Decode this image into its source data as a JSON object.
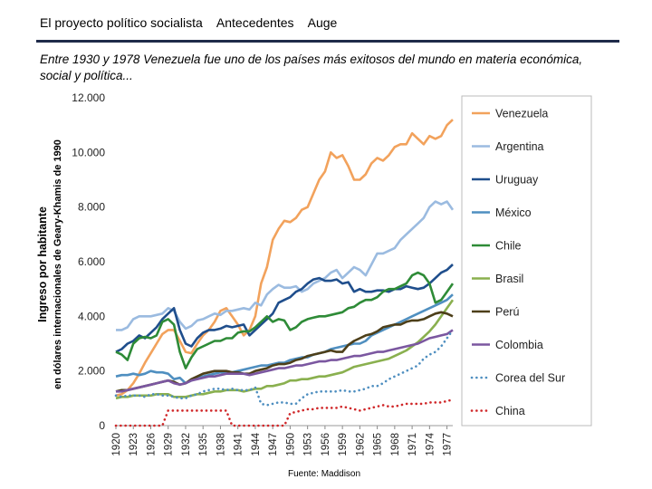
{
  "header": {
    "nav_items": [
      "El proyecto político socialista",
      "Antecedentes",
      "Auge"
    ],
    "intro": "Entre 1930 y 1978 Venezuela fue uno de los países más exitosos del mundo en materia económica, social y política..."
  },
  "footer": {
    "source": "Fuente: Maddison"
  },
  "colors": {
    "rule": "#1f2b4a"
  },
  "chart_data": {
    "type": "line",
    "title": "",
    "ylabel_lines": [
      "Ingreso por habitante",
      "en dólares internacionales de Geary-Khamis de 1990"
    ],
    "ylim": [
      0,
      12000
    ],
    "xlim": [
      1920,
      1978
    ],
    "y_ticks": [
      0,
      2000,
      4000,
      6000,
      8000,
      10000,
      12000
    ],
    "y_tick_labels": [
      "0",
      "2.000",
      "4.000",
      "6.000",
      "8.000",
      "10.000",
      "12.000"
    ],
    "x_ticks": [
      1920,
      1923,
      1926,
      1929,
      1932,
      1935,
      1938,
      1941,
      1944,
      1947,
      1950,
      1953,
      1956,
      1959,
      1962,
      1965,
      1968,
      1971,
      1974,
      1977
    ],
    "x_tick_labels": [
      "1920",
      "1923",
      "1926",
      "1929",
      "1932",
      "1935",
      "1938",
      "1941",
      "1944",
      "1947",
      "1950",
      "1953",
      "1956",
      "1959",
      "1962",
      "1965",
      "1968",
      "1971",
      "1974",
      "1977"
    ],
    "x": [
      1920,
      1921,
      1922,
      1923,
      1924,
      1925,
      1926,
      1927,
      1928,
      1929,
      1930,
      1931,
      1932,
      1933,
      1934,
      1935,
      1936,
      1937,
      1938,
      1939,
      1940,
      1941,
      1942,
      1943,
      1944,
      1945,
      1946,
      1947,
      1948,
      1949,
      1950,
      1951,
      1952,
      1953,
      1954,
      1955,
      1956,
      1957,
      1958,
      1959,
      1960,
      1961,
      1962,
      1963,
      1964,
      1965,
      1966,
      1967,
      1968,
      1969,
      1970,
      1971,
      1972,
      1973,
      1974,
      1975,
      1976,
      1977,
      1978
    ],
    "series": [
      {
        "name": "Venezuela",
        "color": "#f2a25c",
        "dash": "solid",
        "values": [
          1100,
          1150,
          1300,
          1550,
          1900,
          2300,
          2650,
          3000,
          3350,
          3500,
          3500,
          3100,
          2700,
          2650,
          3000,
          3300,
          3500,
          3800,
          4200,
          4300,
          4000,
          3700,
          3300,
          3500,
          4000,
          5200,
          5800,
          6800,
          7200,
          7500,
          7450,
          7600,
          7900,
          8000,
          8500,
          9000,
          9300,
          10000,
          9800,
          9900,
          9500,
          9000,
          9000,
          9200,
          9600,
          9800,
          9700,
          9900,
          10200,
          10300,
          10300,
          10700,
          10500,
          10300,
          10600,
          10500,
          10600,
          11000,
          11200
        ]
      },
      {
        "name": "Argentina",
        "color": "#9bbbe0",
        "dash": "solid",
        "values": [
          3500,
          3500,
          3600,
          3900,
          4000,
          4000,
          4000,
          4050,
          4100,
          4300,
          4200,
          3800,
          3550,
          3650,
          3850,
          3900,
          4000,
          4100,
          4050,
          4200,
          4200,
          4250,
          4300,
          4250,
          4500,
          4400,
          4800,
          5000,
          5150,
          5050,
          5050,
          5100,
          4900,
          5000,
          5200,
          5300,
          5400,
          5600,
          5700,
          5400,
          5600,
          5800,
          5700,
          5500,
          5900,
          6300,
          6300,
          6400,
          6500,
          6800,
          7000,
          7200,
          7400,
          7600,
          8000,
          8200,
          8100,
          8200,
          7900
        ]
      },
      {
        "name": "Uruguay",
        "color": "#1f4e8c",
        "dash": "solid",
        "values": [
          2700,
          2800,
          3000,
          3100,
          3300,
          3200,
          3400,
          3600,
          3900,
          4100,
          4300,
          3500,
          3000,
          2900,
          3200,
          3400,
          3500,
          3500,
          3550,
          3650,
          3600,
          3650,
          3700,
          3300,
          3500,
          3700,
          3900,
          4100,
          4500,
          4600,
          4700,
          4900,
          5000,
          5200,
          5350,
          5400,
          5300,
          5300,
          5350,
          5200,
          5250,
          4900,
          5000,
          4900,
          4900,
          4950,
          4950,
          4900,
          5000,
          5000,
          5100,
          5050,
          5000,
          5050,
          5200,
          5400,
          5600,
          5700,
          5900
        ]
      },
      {
        "name": "México",
        "color": "#4f8fc0",
        "dash": "solid",
        "values": [
          1800,
          1850,
          1850,
          1900,
          1850,
          1900,
          2000,
          1950,
          1950,
          1900,
          1700,
          1750,
          1550,
          1650,
          1750,
          1800,
          1850,
          1900,
          1950,
          1950,
          1950,
          2000,
          2050,
          2100,
          2150,
          2200,
          2200,
          2250,
          2300,
          2300,
          2400,
          2450,
          2500,
          2500,
          2600,
          2650,
          2700,
          2800,
          2850,
          2900,
          2950,
          3000,
          3000,
          3100,
          3300,
          3400,
          3500,
          3600,
          3700,
          3800,
          3900,
          4000,
          4100,
          4200,
          4300,
          4400,
          4500,
          4600,
          4800
        ]
      },
      {
        "name": "Chile",
        "color": "#2e8b37",
        "dash": "solid",
        "values": [
          2700,
          2600,
          2400,
          3000,
          3200,
          3250,
          3200,
          3300,
          3800,
          3900,
          3700,
          2700,
          2100,
          2500,
          2800,
          2900,
          3000,
          3100,
          3100,
          3200,
          3200,
          3400,
          3450,
          3450,
          3600,
          3800,
          4000,
          3800,
          3900,
          3850,
          3500,
          3600,
          3800,
          3900,
          3950,
          4000,
          4000,
          4050,
          4100,
          4150,
          4300,
          4350,
          4500,
          4600,
          4600,
          4700,
          4900,
          5000,
          5000,
          5100,
          5200,
          5500,
          5600,
          5500,
          5200,
          4500,
          4600,
          4900,
          5200
        ]
      },
      {
        "name": "Brasil",
        "color": "#8ab04f",
        "dash": "solid",
        "values": [
          1000,
          1050,
          1050,
          1100,
          1100,
          1100,
          1100,
          1150,
          1150,
          1150,
          1050,
          1050,
          1050,
          1100,
          1150,
          1150,
          1200,
          1250,
          1250,
          1300,
          1300,
          1300,
          1250,
          1300,
          1350,
          1350,
          1450,
          1450,
          1500,
          1550,
          1650,
          1650,
          1700,
          1700,
          1750,
          1800,
          1800,
          1850,
          1900,
          1950,
          2050,
          2150,
          2200,
          2250,
          2300,
          2350,
          2400,
          2450,
          2550,
          2650,
          2750,
          2900,
          3050,
          3250,
          3450,
          3700,
          4000,
          4300,
          4600
        ]
      },
      {
        "name": "Perú",
        "color": "#4d3f19",
        "dash": "solid",
        "values": [
          1250,
          1300,
          1300,
          1350,
          1400,
          1450,
          1500,
          1550,
          1600,
          1650,
          1600,
          1500,
          1550,
          1700,
          1800,
          1900,
          1950,
          2000,
          2000,
          2000,
          1950,
          1950,
          1900,
          1900,
          2000,
          2050,
          2100,
          2200,
          2250,
          2250,
          2300,
          2400,
          2450,
          2550,
          2600,
          2650,
          2700,
          2750,
          2700,
          2700,
          2950,
          3100,
          3200,
          3300,
          3350,
          3450,
          3600,
          3650,
          3700,
          3700,
          3800,
          3850,
          3850,
          3900,
          4000,
          4100,
          4150,
          4100,
          4000
        ]
      },
      {
        "name": "Colombia",
        "color": "#7b57a0",
        "dash": "solid",
        "values": [
          1250,
          1250,
          1300,
          1350,
          1400,
          1450,
          1500,
          1550,
          1600,
          1650,
          1550,
          1500,
          1550,
          1650,
          1700,
          1750,
          1800,
          1800,
          1850,
          1900,
          1900,
          1900,
          1900,
          1850,
          1900,
          1950,
          2000,
          2050,
          2100,
          2100,
          2150,
          2200,
          2200,
          2250,
          2300,
          2350,
          2350,
          2400,
          2400,
          2450,
          2500,
          2550,
          2550,
          2600,
          2650,
          2700,
          2700,
          2750,
          2800,
          2850,
          2900,
          2950,
          3000,
          3100,
          3200,
          3250,
          3300,
          3350,
          3500
        ]
      },
      {
        "name": "Corea del Sur",
        "color": "#4f8fc0",
        "dash": "dot",
        "values": [
          1100,
          1050,
          1100,
          1100,
          1100,
          1050,
          1150,
          1150,
          1100,
          1100,
          1050,
          1000,
          1000,
          1100,
          1150,
          1250,
          1300,
          1350,
          1350,
          1300,
          1350,
          1300,
          1300,
          1300,
          1400,
          800,
          750,
          800,
          850,
          850,
          800,
          800,
          1000,
          1150,
          1200,
          1250,
          1250,
          1250,
          1250,
          1300,
          1250,
          1250,
          1300,
          1350,
          1450,
          1450,
          1550,
          1700,
          1800,
          1900,
          2000,
          2100,
          2200,
          2450,
          2600,
          2700,
          2900,
          3200,
          3500
        ]
      },
      {
        "name": "China",
        "color": "#d0282a",
        "dash": "dot",
        "values": [
          0,
          0,
          0,
          0,
          0,
          0,
          0,
          0,
          0,
          550,
          550,
          550,
          550,
          550,
          550,
          550,
          550,
          550,
          550,
          550,
          0,
          0,
          0,
          0,
          0,
          0,
          0,
          0,
          0,
          0,
          450,
          500,
          550,
          600,
          600,
          650,
          650,
          650,
          650,
          700,
          650,
          600,
          550,
          600,
          650,
          700,
          750,
          700,
          700,
          750,
          800,
          800,
          800,
          800,
          850,
          850,
          850,
          900,
          950
        ]
      }
    ]
  }
}
